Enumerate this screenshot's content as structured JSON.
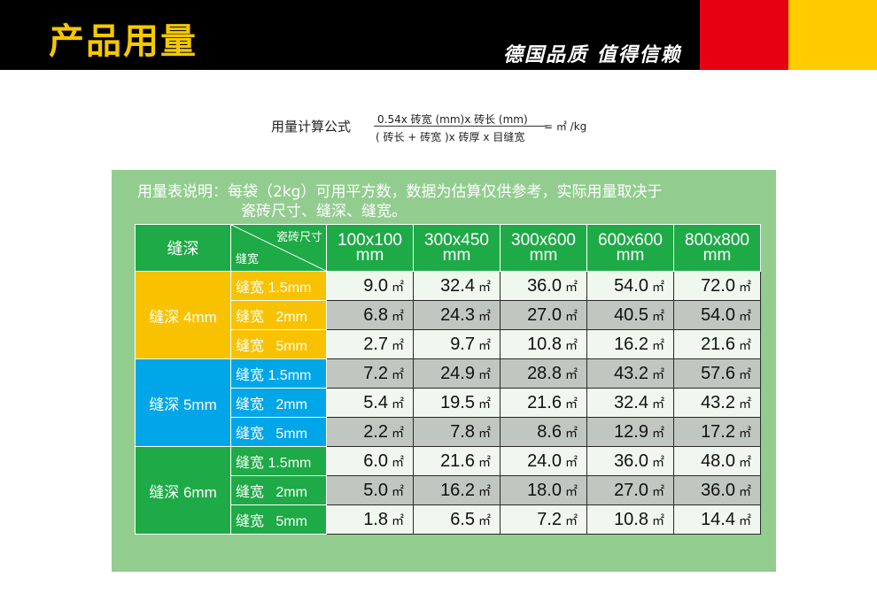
{
  "header": {
    "title": "产品用量",
    "slogan": "德国品质 值得信赖",
    "colors": {
      "bar": "#000000",
      "title": "#f5c800",
      "flag_red": "#e60012",
      "flag_yellow": "#ffcc00"
    }
  },
  "formula": {
    "lead": "用量计算公式",
    "numerator": "0.54x 砖宽 (mm)x 砖长 (mm)",
    "denominator": "( 砖长 + 砖宽 )x 砖厚 x 目缝宽",
    "result": "= ㎡ /kg"
  },
  "panel": {
    "note_line1": "用量表说明：每袋（2kg）可用平方数，数据为估算仅供参考，实际用量取决于",
    "note_line2": "瓷砖尺寸、缝深、缝宽。",
    "color": "#92cd8f"
  },
  "table": {
    "depth_header": "缝深",
    "diag_top": "瓷砖尺寸",
    "diag_bottom": "缝宽",
    "sizes": [
      {
        "dim": "100x100",
        "unit": "mm"
      },
      {
        "dim": "300x450",
        "unit": "mm"
      },
      {
        "dim": "300x600",
        "unit": "mm"
      },
      {
        "dim": "600x600",
        "unit": "mm"
      },
      {
        "dim": "800x800",
        "unit": "mm"
      }
    ],
    "unit_symbol": "㎡",
    "groups": [
      {
        "depth": "缝深 4mm",
        "rows": [
          {
            "width": "缝宽 1.5mm",
            "values": [
              "9.0",
              "32.4",
              "36.0",
              "54.0",
              "72.0"
            ]
          },
          {
            "width": "缝宽   2mm",
            "values": [
              "6.8",
              "24.3",
              "27.0",
              "40.5",
              "54.0"
            ]
          },
          {
            "width": "缝宽   5mm",
            "values": [
              "2.7",
              "9.7",
              "10.8",
              "16.2",
              "21.6"
            ]
          }
        ]
      },
      {
        "depth": "缝深 5mm",
        "rows": [
          {
            "width": "缝宽 1.5mm",
            "values": [
              "7.2",
              "24.9",
              "28.8",
              "43.2",
              "57.6"
            ]
          },
          {
            "width": "缝宽   2mm",
            "values": [
              "5.4",
              "19.5",
              "21.6",
              "32.4",
              "43.2"
            ]
          },
          {
            "width": "缝宽   5mm",
            "values": [
              "2.2",
              "7.8",
              "8.6",
              "12.9",
              "17.2"
            ]
          }
        ]
      },
      {
        "depth": "缝深 6mm",
        "rows": [
          {
            "width": "缝宽 1.5mm",
            "values": [
              "6.0",
              "21.6",
              "24.0",
              "36.0",
              "48.0"
            ]
          },
          {
            "width": "缝宽   2mm",
            "values": [
              "5.0",
              "16.2",
              "18.0",
              "27.0",
              "36.0"
            ]
          },
          {
            "width": "缝宽   5mm",
            "values": [
              "1.8",
              "6.5",
              "7.2",
              "10.8",
              "14.4"
            ]
          }
        ]
      }
    ]
  }
}
